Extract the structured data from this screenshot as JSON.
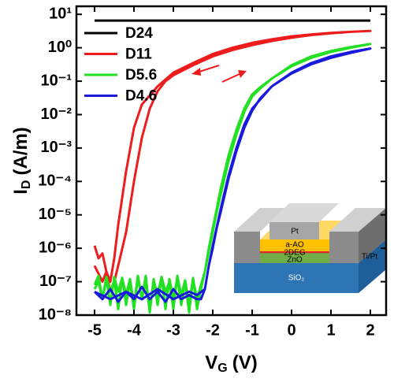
{
  "chart_data": {
    "type": "line",
    "x_label": {
      "symbol": "V",
      "sub": "G",
      "unit": "(V)"
    },
    "y_label": {
      "symbol": "I",
      "sub": "D",
      "unit": "(A/m)"
    },
    "log_y": true,
    "xlim": [
      -5.46,
      2.4
    ],
    "xticks": [
      -5,
      -4,
      -3,
      -2,
      -1,
      0,
      1,
      2
    ],
    "ylim": [
      1e-08,
      17.4
    ],
    "yticks": [
      {
        "value": 1e-08,
        "label": "10⁻⁸"
      },
      {
        "value": 1e-07,
        "label": "10⁻⁷"
      },
      {
        "value": 1e-06,
        "label": "10⁻⁶"
      },
      {
        "value": 1e-05,
        "label": "10⁻⁵"
      },
      {
        "value": 0.0001,
        "label": "10⁻⁴"
      },
      {
        "value": 0.001,
        "label": "10⁻³"
      },
      {
        "value": 0.01,
        "label": "10⁻²"
      },
      {
        "value": 0.1,
        "label": "10⁻¹"
      },
      {
        "value": 1,
        "label": "10⁰"
      },
      {
        "value": 10,
        "label": "10¹"
      }
    ],
    "legend": "upper left",
    "series": [
      {
        "name": "D24",
        "color": "#000000",
        "x": [
          -5,
          2
        ],
        "values": [
          6.5,
          6.5
        ]
      },
      {
        "name": "D11",
        "color": "#ee1c1c",
        "x": [
          -5,
          -4.9,
          -4.8,
          -4.7,
          -4.6,
          -4.5,
          -4.4,
          -4.2,
          -4.0,
          -3.8,
          -3.6,
          -3.4,
          -3.2,
          -3,
          -2.5,
          -2,
          -1.5,
          -1,
          -0.5,
          0,
          0.5,
          1,
          1.5,
          2,
          1.5,
          1,
          0.5,
          0,
          -0.5,
          -1,
          -1.5,
          -2,
          -2.5,
          -3,
          -3.4,
          -3.8,
          -4.0,
          -4.2,
          -4.4,
          -4.5,
          -4.6,
          -4.7,
          -4.8,
          -5
        ],
        "values": [
          1.2e-06,
          5e-07,
          7e-07,
          2e-07,
          5e-08,
          1e-07,
          3e-07,
          3e-06,
          0.0001,
          0.002,
          0.015,
          0.05,
          0.1,
          0.15,
          0.3,
          0.55,
          0.85,
          1.2,
          1.6,
          2.0,
          2.4,
          2.7,
          3.0,
          3.2,
          3.0,
          2.8,
          2.5,
          2.2,
          1.8,
          1.4,
          1.0,
          0.65,
          0.35,
          0.18,
          0.07,
          0.02,
          0.004,
          0.0002,
          5e-06,
          5e-07,
          1e-07,
          2e-07,
          1e-07,
          3e-07
        ]
      },
      {
        "name": "D5.6",
        "color": "#22e022",
        "x": [
          -5,
          -4.9,
          -4.8,
          -4.7,
          -4.6,
          -4.5,
          -4.4,
          -4.3,
          -4.2,
          -4.1,
          -4,
          -3.9,
          -3.8,
          -3.7,
          -3.6,
          -3.5,
          -3.4,
          -3.3,
          -3.2,
          -3.1,
          -3,
          -2.9,
          -2.8,
          -2.7,
          -2.6,
          -2.5,
          -2.4,
          -2.3,
          -2.2,
          -2.1,
          -2,
          -1.9,
          -1.8,
          -1.6,
          -1.4,
          -1.2,
          -1,
          -0.8,
          -0.5,
          0,
          0.5,
          1,
          1.5,
          2,
          1.5,
          1,
          0.5,
          0,
          -0.5,
          -0.8,
          -1,
          -1.2,
          -1.4,
          -1.6,
          -1.8,
          -1.9,
          -2,
          -2.1,
          -2.2,
          -2.3,
          -2.4,
          -2.5,
          -2.6,
          -2.7,
          -2.8,
          -2.9,
          -3,
          -3.1,
          -3.2,
          -3.3,
          -3.4,
          -3.5,
          -3.6,
          -3.7,
          -3.8,
          -3.9,
          -4,
          -4.1,
          -4.2,
          -4.3,
          -4.4,
          -4.5,
          -4.6,
          -4.7,
          -4.8,
          -4.9,
          -5
        ],
        "values": [
          8e-08,
          1.5e-07,
          3e-08,
          1.2e-07,
          2e-08,
          1.4e-07,
          5e-08,
          1.3e-07,
          2e-08,
          1e-07,
          1.5e-08,
          1.3e-07,
          3e-08,
          1.5e-07,
          1.2e-08,
          1.1e-07,
          4e-08,
          1.4e-07,
          1.5e-08,
          1.2e-07,
          3e-08,
          1.3e-07,
          2e-08,
          1e-07,
          1.2e-08,
          1.2e-07,
          3e-08,
          8e-08,
          2e-07,
          8e-07,
          3e-06,
          1.2e-05,
          4e-05,
          0.0004,
          0.0025,
          0.012,
          0.035,
          0.06,
          0.12,
          0.3,
          0.55,
          0.8,
          1.05,
          1.3,
          1.0,
          0.75,
          0.5,
          0.28,
          0.12,
          0.065,
          0.04,
          0.015,
          0.0035,
          0.0006,
          6e-05,
          1.5e-05,
          4e-06,
          1e-06,
          2e-07,
          6e-08,
          1.5e-08,
          1.3e-07,
          2e-08,
          1.1e-07,
          4e-08,
          1.5e-07,
          1.5e-08,
          1e-07,
          5e-08,
          1.4e-07,
          2e-08,
          1.2e-07,
          1.3e-08,
          1e-07,
          3e-08,
          1.5e-07,
          2e-08,
          1.2e-07,
          4e-08,
          1.3e-07,
          1.5e-08,
          1.1e-07,
          5e-08,
          1.4e-07,
          3e-08,
          1e-07,
          6e-08
        ]
      },
      {
        "name": "D4.6",
        "color": "#1a1adc",
        "x": [
          -5,
          -4.8,
          -4.6,
          -4.4,
          -4.2,
          -4,
          -3.8,
          -3.6,
          -3.4,
          -3.2,
          -3,
          -2.8,
          -2.6,
          -2.4,
          -2.3,
          -2.2,
          -2.1,
          -2,
          -1.9,
          -1.8,
          -1.6,
          -1.4,
          -1.2,
          -1,
          -0.8,
          -0.5,
          0,
          0.5,
          1,
          1.5,
          2,
          1.5,
          1,
          0.5,
          0,
          -0.5,
          -1,
          -1.2,
          -1.4,
          -1.6,
          -1.8,
          -2,
          -2.1,
          -2.2,
          -2.4,
          -2.6,
          -3,
          -3.4,
          -3.8,
          -4.2,
          -4.6,
          -5
        ],
        "values": [
          5e-08,
          3e-08,
          6e-08,
          2.5e-08,
          5e-08,
          3e-08,
          7e-08,
          3e-08,
          5e-08,
          2.5e-08,
          6e-08,
          3e-08,
          4e-08,
          3e-08,
          3e-08,
          6e-08,
          3e-07,
          1e-06,
          4e-06,
          1.2e-05,
          0.00012,
          0.0008,
          0.004,
          0.013,
          0.03,
          0.07,
          0.18,
          0.35,
          0.55,
          0.75,
          0.95,
          0.7,
          0.5,
          0.32,
          0.17,
          0.07,
          0.015,
          0.005,
          0.001,
          0.00015,
          1.5e-05,
          1.2e-06,
          3e-07,
          6e-08,
          4e-08,
          5e-08,
          3e-08,
          6e-08,
          3e-08,
          5e-08,
          3e-08,
          5e-08
        ]
      }
    ]
  },
  "inset": {
    "labels": [
      "Pt",
      "a-AO",
      "2DEG",
      "ZnO",
      "Ti/Pt",
      "SiO₂"
    ]
  }
}
